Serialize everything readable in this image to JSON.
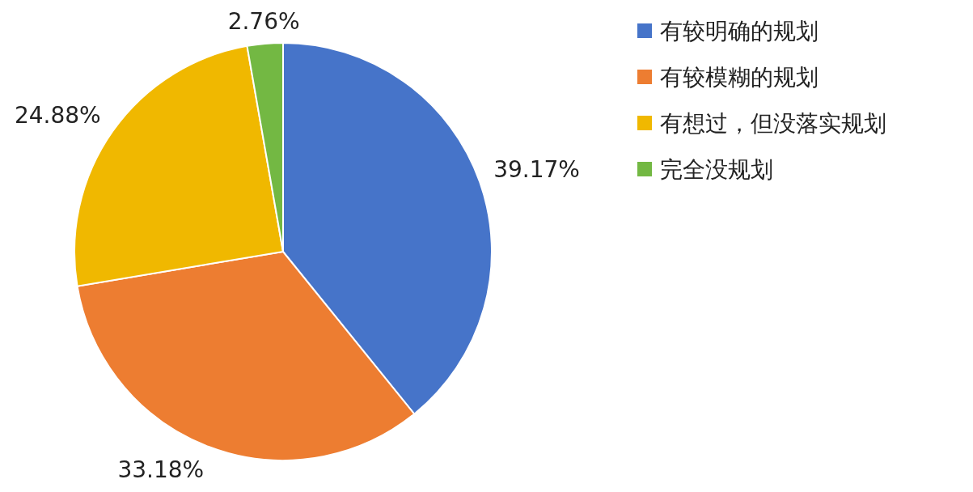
{
  "chart_data": {
    "type": "pie",
    "categories": [
      "有较明确的规划",
      "有较模糊的规划",
      "有想过，但没落实规划",
      "完全没规划"
    ],
    "values": [
      39.17,
      33.18,
      24.88,
      2.76
    ],
    "colors": [
      "#4674c9",
      "#ed7d31",
      "#f0b800",
      "#73b843"
    ],
    "value_labels": [
      "39.17%",
      "33.18%",
      "24.88%",
      "2.76%"
    ],
    "legend": "right"
  }
}
